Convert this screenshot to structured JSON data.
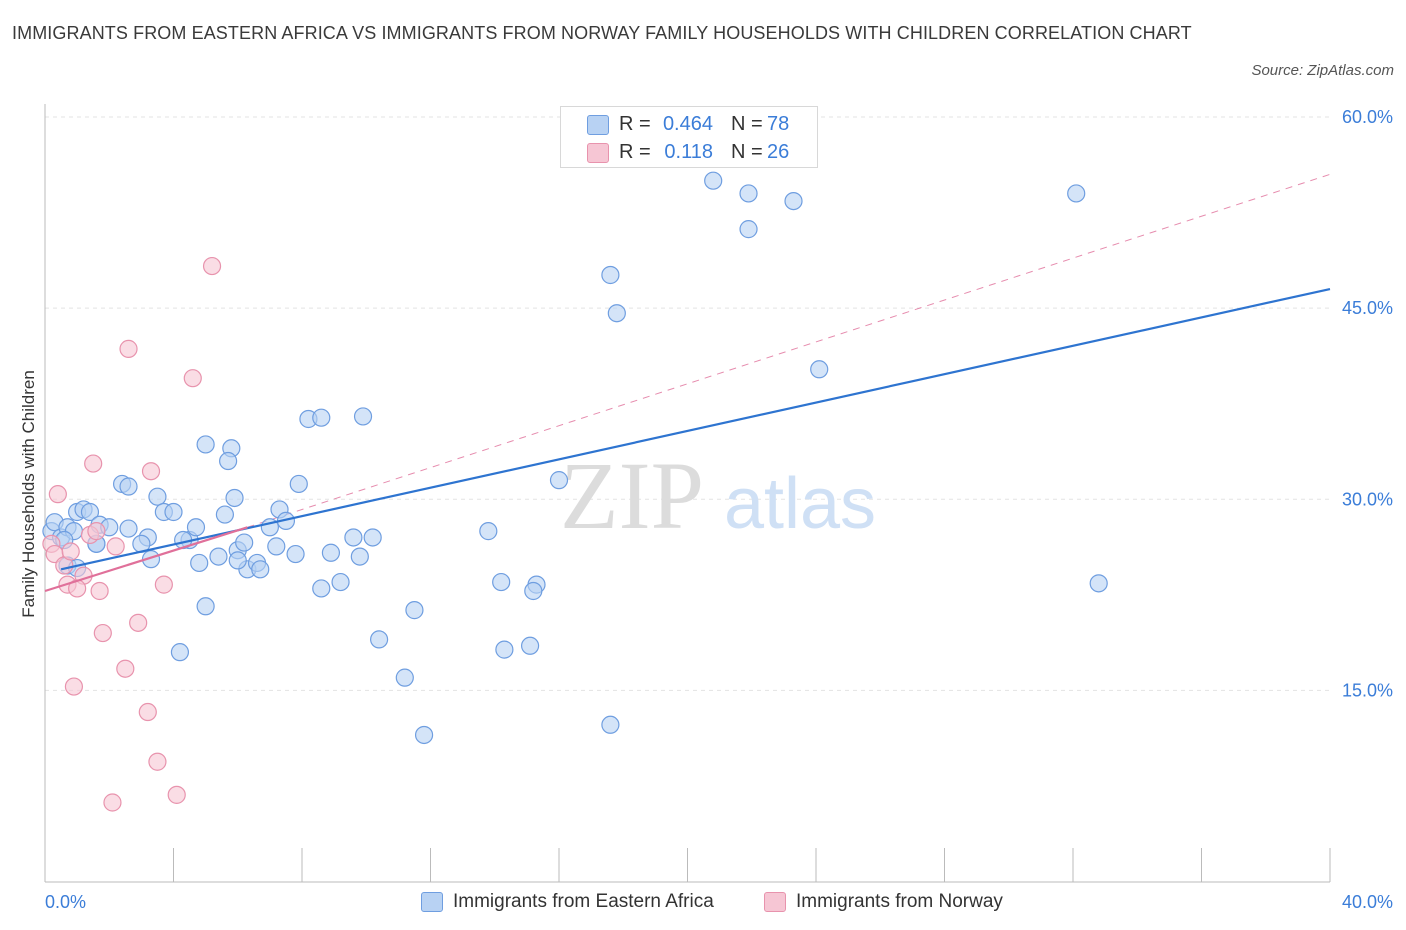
{
  "header": {
    "title": "IMMIGRANTS FROM EASTERN AFRICA VS IMMIGRANTS FROM NORWAY FAMILY HOUSEHOLDS WITH CHILDREN CORRELATION CHART",
    "source": "Source: ZipAtlas.com"
  },
  "colors": {
    "blue_fill": "#b8d2f3",
    "blue_stroke": "#6f9ee0",
    "blue_line": "#2e74d0",
    "pink_fill": "#f6c6d4",
    "pink_stroke": "#e893ad",
    "pink_line": "#e0709a",
    "axis_text": "#3b7dd8",
    "grid": "#e3e3e3"
  },
  "legend_top": {
    "rows": [
      {
        "r_label": "R =",
        "r_value": "0.464",
        "n_label": "N =",
        "n_value": "78"
      },
      {
        "r_label": "R =",
        "r_value": "0.118",
        "n_label": "N =",
        "n_value": "26"
      }
    ]
  },
  "legend_bottom": {
    "items": [
      {
        "label": "Immigrants from Eastern Africa"
      },
      {
        "label": "Immigrants from Norway"
      }
    ]
  },
  "watermark": {
    "zip": "ZIP",
    "atlas": "atlas"
  },
  "chart_data": {
    "type": "scatter",
    "title": "IMMIGRANTS FROM EASTERN AFRICA VS IMMIGRANTS FROM NORWAY FAMILY HOUSEHOLDS WITH CHILDREN CORRELATION CHART",
    "xlabel": "",
    "ylabel": "Family Households with Children",
    "xlim": [
      0,
      40
    ],
    "ylim": [
      0,
      60
    ],
    "x_tick_labels": [
      "0.0%",
      "40.0%"
    ],
    "y_ticks": [
      {
        "value": 15,
        "label": "15.0%"
      },
      {
        "value": 30,
        "label": "30.0%"
      },
      {
        "value": 45,
        "label": "45.0%"
      },
      {
        "value": 60,
        "label": "60.0%"
      }
    ],
    "series": [
      {
        "name": "Immigrants from Eastern Africa",
        "R": 0.464,
        "N": 78,
        "trend": {
          "x0": 0.5,
          "y0": 24.5,
          "x1": 40,
          "y1": 46.5
        },
        "points": [
          [
            0.2,
            27.5
          ],
          [
            0.3,
            28.2
          ],
          [
            0.5,
            27.0
          ],
          [
            0.7,
            27.8
          ],
          [
            0.9,
            27.5
          ],
          [
            1.0,
            29.0
          ],
          [
            1.2,
            29.2
          ],
          [
            1.4,
            29.0
          ],
          [
            1.7,
            28.0
          ],
          [
            2.0,
            27.8
          ],
          [
            2.4,
            31.2
          ],
          [
            2.6,
            31.0
          ],
          [
            3.2,
            27.0
          ],
          [
            3.5,
            30.2
          ],
          [
            3.7,
            29.0
          ],
          [
            3.0,
            26.5
          ],
          [
            1.6,
            26.5
          ],
          [
            1.6,
            26.5
          ],
          [
            0.6,
            26.8
          ],
          [
            0.7,
            24.8
          ],
          [
            1.0,
            24.6
          ],
          [
            4.0,
            29.0
          ],
          [
            4.5,
            26.8
          ],
          [
            4.3,
            26.8
          ],
          [
            4.7,
            27.8
          ],
          [
            5.6,
            28.8
          ],
          [
            5.0,
            34.3
          ],
          [
            5.8,
            34.0
          ],
          [
            5.7,
            33.0
          ],
          [
            5.9,
            30.1
          ],
          [
            4.8,
            25.0
          ],
          [
            5.4,
            25.5
          ],
          [
            6.0,
            26.0
          ],
          [
            6.3,
            24.5
          ],
          [
            6.6,
            25.0
          ],
          [
            6.7,
            24.5
          ],
          [
            6.0,
            25.2
          ],
          [
            7.0,
            27.8
          ],
          [
            7.3,
            29.2
          ],
          [
            7.5,
            28.3
          ],
          [
            7.9,
            31.2
          ],
          [
            7.2,
            26.3
          ],
          [
            7.8,
            25.7
          ],
          [
            8.6,
            23.0
          ],
          [
            8.9,
            25.8
          ],
          [
            9.2,
            23.5
          ],
          [
            8.2,
            36.3
          ],
          [
            8.6,
            36.4
          ],
          [
            9.9,
            36.5
          ],
          [
            9.6,
            27.0
          ],
          [
            10.2,
            27.0
          ],
          [
            9.8,
            25.5
          ],
          [
            5.0,
            21.6
          ],
          [
            4.2,
            18.0
          ],
          [
            10.4,
            19.0
          ],
          [
            11.2,
            16.0
          ],
          [
            11.8,
            11.5
          ],
          [
            11.5,
            21.3
          ],
          [
            13.8,
            27.5
          ],
          [
            14.2,
            23.5
          ],
          [
            14.3,
            18.2
          ],
          [
            15.3,
            23.3
          ],
          [
            15.2,
            22.8
          ],
          [
            15.1,
            18.5
          ],
          [
            16.0,
            31.5
          ],
          [
            17.6,
            12.3
          ],
          [
            17.6,
            47.6
          ],
          [
            17.8,
            44.6
          ],
          [
            20.8,
            55.0
          ],
          [
            21.9,
            54.0
          ],
          [
            21.9,
            51.2
          ],
          [
            23.3,
            53.4
          ],
          [
            24.1,
            40.2
          ],
          [
            32.1,
            54.0
          ],
          [
            32.8,
            23.4
          ],
          [
            2.6,
            27.7
          ],
          [
            3.3,
            25.3
          ],
          [
            6.2,
            26.6
          ]
        ]
      },
      {
        "name": "Immigrants from Norway",
        "R": 0.118,
        "N": 26,
        "trend": {
          "x0": 0.0,
          "y0": 22.8,
          "x1": 6.3,
          "y1": 27.8
        },
        "trend_extended": {
          "x0": 6.3,
          "y0": 27.8,
          "x1": 40,
          "y1": 55.5
        },
        "points": [
          [
            0.2,
            26.5
          ],
          [
            0.3,
            25.7
          ],
          [
            0.4,
            30.4
          ],
          [
            0.6,
            24.8
          ],
          [
            0.7,
            23.3
          ],
          [
            0.8,
            25.9
          ],
          [
            1.2,
            24.0
          ],
          [
            1.0,
            23.0
          ],
          [
            1.4,
            27.2
          ],
          [
            1.6,
            27.5
          ],
          [
            1.5,
            32.8
          ],
          [
            1.7,
            22.8
          ],
          [
            1.8,
            19.5
          ],
          [
            2.2,
            26.3
          ],
          [
            2.5,
            16.7
          ],
          [
            2.6,
            41.8
          ],
          [
            2.9,
            20.3
          ],
          [
            3.2,
            13.3
          ],
          [
            3.3,
            32.2
          ],
          [
            3.5,
            9.4
          ],
          [
            3.7,
            23.3
          ],
          [
            4.1,
            6.8
          ],
          [
            4.6,
            39.5
          ],
          [
            5.2,
            48.3
          ],
          [
            2.1,
            6.2
          ],
          [
            0.9,
            15.3
          ]
        ]
      }
    ]
  }
}
